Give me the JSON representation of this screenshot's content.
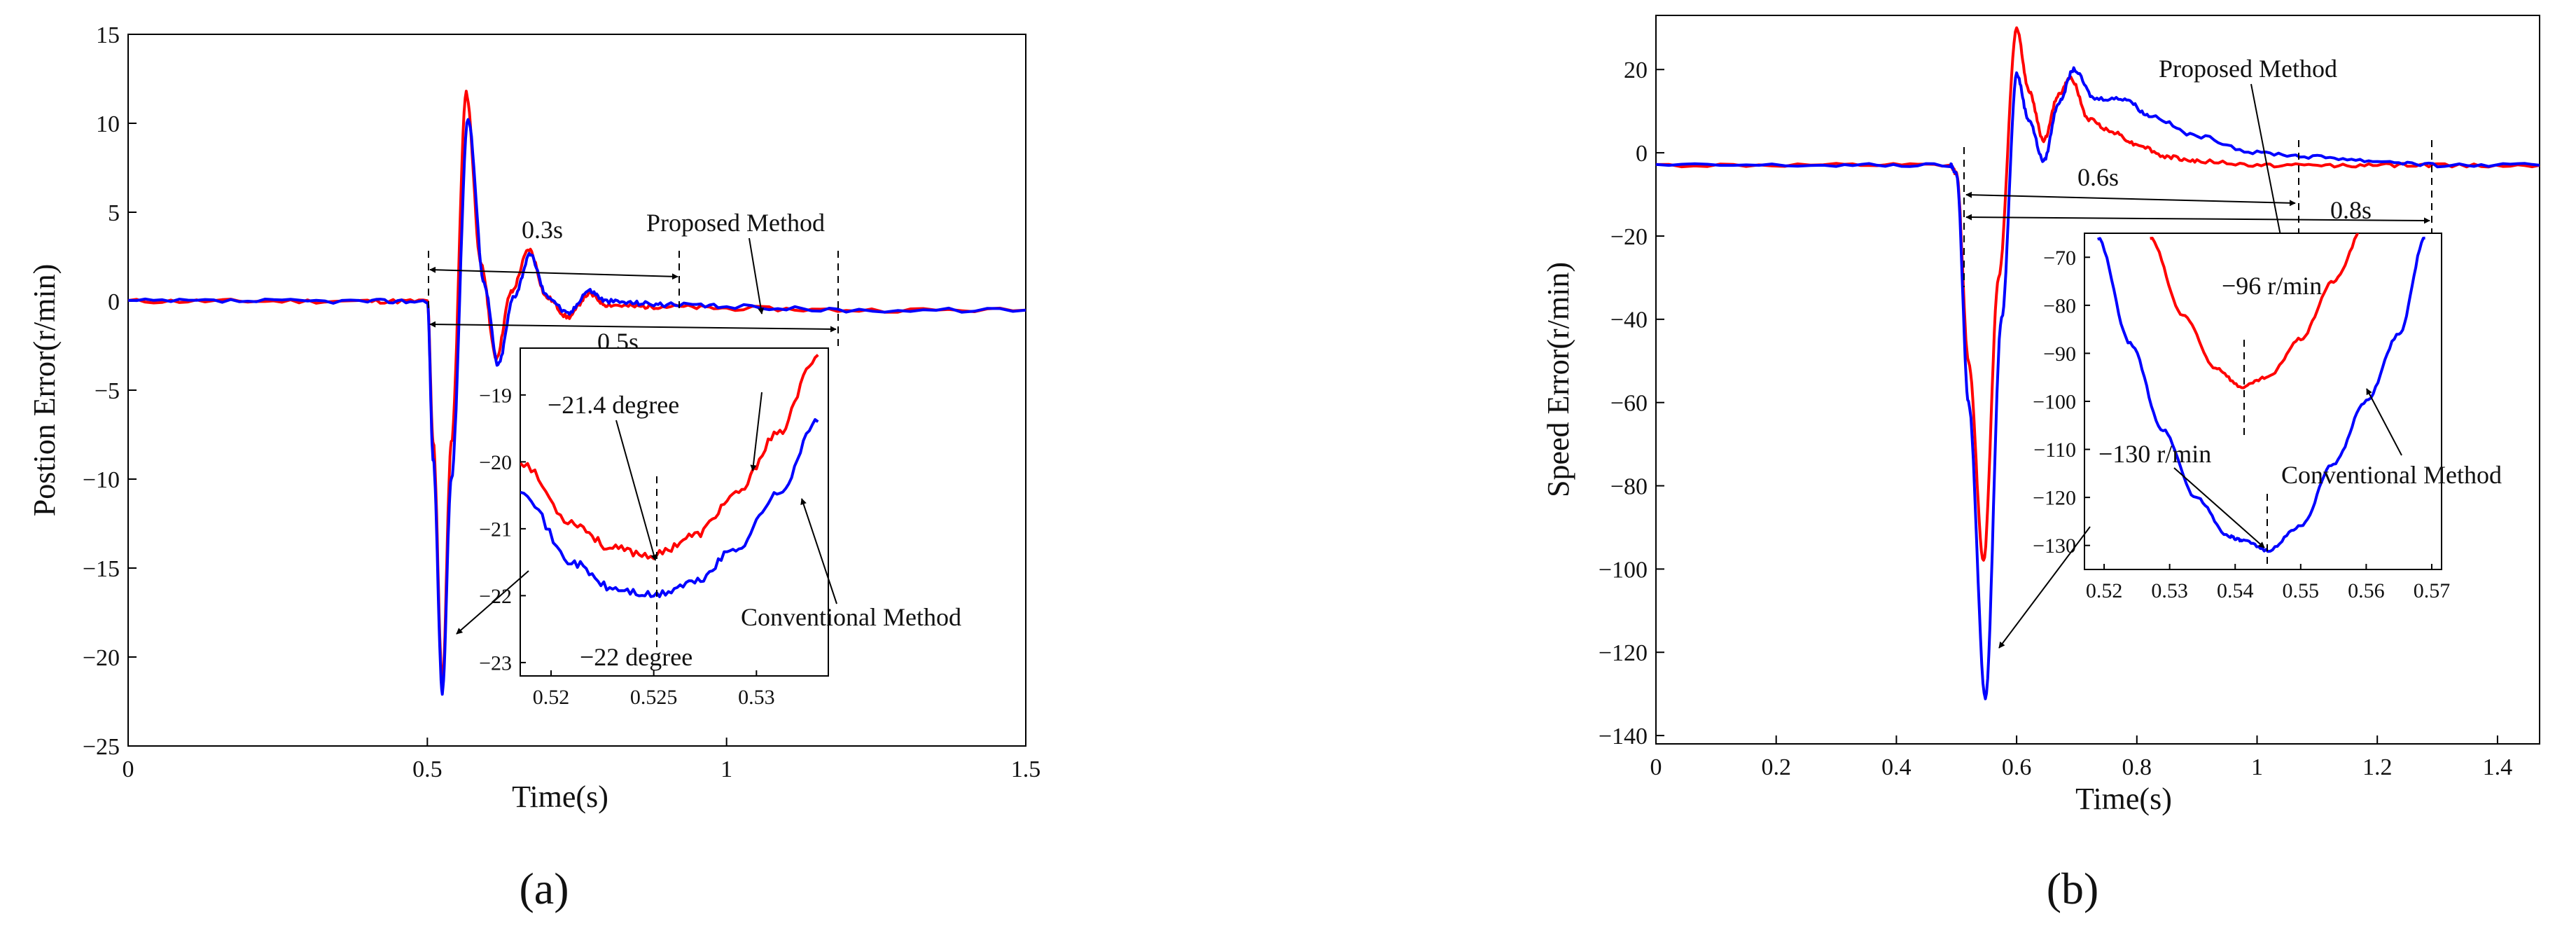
{
  "panels": [
    {
      "caption": "(a)",
      "xlabel": "Time(s)",
      "ylabel": "Postion Error(r/min)",
      "xticks": [
        "0",
        "0.5",
        "1",
        "1.5"
      ],
      "yticks": [
        "15",
        "10",
        "5",
        "0",
        "−5",
        "−10",
        "−15",
        "−20",
        "−25"
      ],
      "annotations": {
        "t1": "0.3s",
        "t2": "0.5s",
        "proposed": "Proposed Method",
        "conventional": "Conventional Method",
        "min_red": "−21.4 degree",
        "min_blue": "−22 degree"
      },
      "inset_xticks": [
        "0.52",
        "0.525",
        "0.53"
      ],
      "inset_yticks": [
        "−19",
        "−20",
        "−21",
        "−22",
        "−23"
      ]
    },
    {
      "caption": "(b)",
      "xlabel": "Time(s)",
      "ylabel": "Speed Error(r/min)",
      "xticks": [
        "0",
        "0.2",
        "0.4",
        "0.6",
        "0.8",
        "1",
        "1.2",
        "1.4"
      ],
      "yticks": [
        "20",
        "0",
        "−20",
        "−40",
        "−60",
        "−80",
        "−100",
        "−120",
        "−140"
      ],
      "annotations": {
        "t1": "0.6s",
        "t2": "0.8s",
        "proposed": "Proposed Method",
        "conventional": "Conventional Method",
        "min_red": "−96 r/min",
        "min_blue": "−130 r/min"
      },
      "inset_xticks": [
        "0.52",
        "0.53",
        "0.54",
        "0.55",
        "0.56",
        "0.57"
      ],
      "inset_yticks": [
        "−70",
        "−80",
        "−90",
        "−100",
        "−110",
        "−120",
        "−130"
      ]
    }
  ],
  "colors": {
    "proposed": "#ff0000",
    "conventional": "#0000ff"
  },
  "chart_data": [
    {
      "type": "line",
      "xlim": [
        0,
        1.5
      ],
      "ylim": [
        -25,
        15
      ],
      "series": [
        {
          "name": "Proposed Method",
          "color": "#ff0000",
          "x": [
            0,
            0.2,
            0.4,
            0.5,
            0.51,
            0.525,
            0.54,
            0.565,
            0.59,
            0.615,
            0.64,
            0.67,
            0.7,
            0.735,
            0.77,
            0.8,
            0.85,
            0.9,
            1.0,
            1.2,
            1.5
          ],
          "y": [
            0,
            0,
            0,
            0,
            -8,
            -21.4,
            -8,
            11.7,
            2,
            -3.2,
            0.5,
            2.9,
            0.2,
            -0.9,
            0.4,
            -0.2,
            -0.3,
            -0.3,
            -0.4,
            -0.5,
            -0.5
          ]
        },
        {
          "name": "Conventional Method",
          "color": "#0000ff",
          "x": [
            0,
            0.2,
            0.4,
            0.5,
            0.51,
            0.525,
            0.54,
            0.568,
            0.595,
            0.618,
            0.645,
            0.672,
            0.7,
            0.735,
            0.77,
            0.8,
            0.85,
            0.9,
            1.0,
            1.2,
            1.5
          ],
          "y": [
            0,
            0,
            0,
            0,
            -9,
            -22,
            -10,
            10.3,
            1,
            -3.6,
            0.3,
            2.6,
            0.3,
            -0.7,
            0.6,
            0,
            -0.1,
            -0.2,
            -0.3,
            -0.5,
            -0.5
          ]
        }
      ],
      "inset": {
        "xlim": [
          0.5185,
          0.5335
        ],
        "ylim": [
          -23.2,
          -18.3
        ],
        "series": [
          {
            "name": "Proposed Method",
            "x": [
              0.5185,
              0.521,
              0.523,
              0.525,
              0.527,
              0.529,
              0.531,
              0.533
            ],
            "y": [
              -20.0,
              -20.9,
              -21.3,
              -21.4,
              -21.1,
              -20.5,
              -19.6,
              -18.4
            ]
          },
          {
            "name": "Conventional Method",
            "x": [
              0.5185,
              0.521,
              0.523,
              0.525,
              0.527,
              0.529,
              0.531,
              0.533
            ],
            "y": [
              -20.4,
              -21.5,
              -21.9,
              -22.0,
              -21.8,
              -21.3,
              -20.5,
              -19.4
            ]
          }
        ]
      }
    },
    {
      "type": "line",
      "xlim": [
        0,
        1.47
      ],
      "ylim": [
        -142,
        33
      ],
      "series": [
        {
          "name": "Proposed Method",
          "color": "#ff0000",
          "x": [
            0,
            0.3,
            0.49,
            0.5,
            0.52,
            0.545,
            0.57,
            0.6,
            0.62,
            0.645,
            0.67,
            0.69,
            0.72,
            0.76,
            0.8,
            0.85,
            0.9,
            1.0,
            1.1,
            1.2,
            1.3,
            1.47
          ],
          "y": [
            -3,
            -3,
            -3,
            -5,
            -50,
            -98,
            -30,
            30,
            15,
            3,
            14,
            18,
            8,
            5,
            2,
            -1,
            -2,
            -3,
            -3,
            -3,
            -3,
            -3
          ]
        },
        {
          "name": "Conventional Method",
          "color": "#0000ff",
          "x": [
            0,
            0.3,
            0.49,
            0.5,
            0.52,
            0.548,
            0.575,
            0.6,
            0.62,
            0.645,
            0.67,
            0.695,
            0.73,
            0.78,
            0.82,
            0.9,
            1.0,
            1.1,
            1.2,
            1.3,
            1.47
          ],
          "y": [
            -3,
            -3,
            -3,
            -5,
            -60,
            -131,
            -40,
            19,
            8,
            -2,
            12,
            20,
            13,
            13,
            9,
            4,
            0,
            -1,
            -2,
            -3,
            -3
          ]
        }
      ],
      "inset": {
        "xlim": [
          0.517,
          0.5715
        ],
        "ylim": [
          -135,
          -65
        ],
        "series": [
          {
            "name": "Proposed Method",
            "x": [
              0.527,
              0.532,
              0.537,
              0.541,
              0.545,
              0.55,
              0.555,
              0.56
            ],
            "y": [
              -66,
              -82,
              -93,
              -97,
              -95,
              -87,
              -75,
              -63
            ]
          },
          {
            "name": "Conventional Method",
            "x": [
              0.519,
              0.524,
              0.529,
              0.534,
              0.539,
              0.541,
              0.545,
              0.55,
              0.555,
              0.56,
              0.565,
              0.569
            ],
            "y": [
              -66,
              -88,
              -106,
              -120,
              -128,
              -129,
              -131,
              -126,
              -113,
              -100,
              -86,
              -66
            ]
          }
        ]
      }
    }
  ]
}
